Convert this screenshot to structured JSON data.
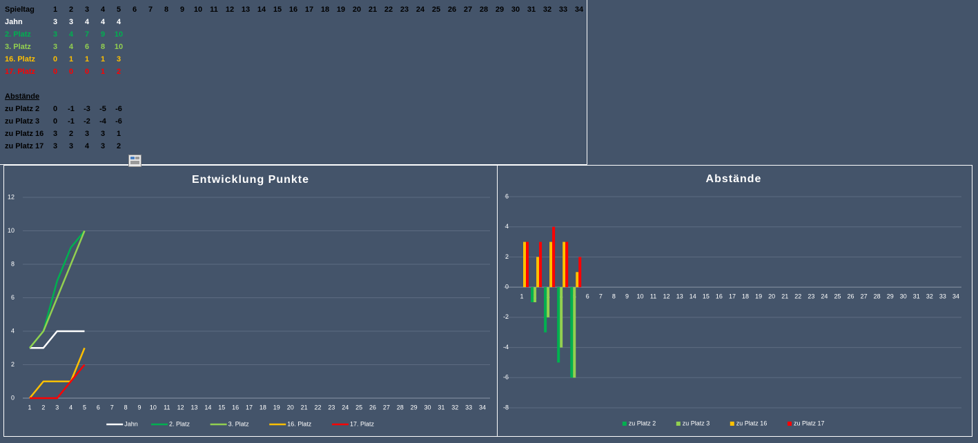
{
  "table": {
    "header": {
      "label": "Spieltag",
      "values": [
        1,
        2,
        3,
        4,
        5,
        6,
        7,
        8,
        9,
        10,
        11,
        12,
        13,
        14,
        15,
        16,
        17,
        18,
        19,
        20,
        21,
        22,
        23,
        24,
        25,
        26,
        27,
        28,
        29,
        30,
        31,
        32,
        33,
        34
      ],
      "color": "#000000"
    },
    "rows": [
      {
        "label": "Jahn",
        "values": [
          3,
          3,
          4,
          4,
          4
        ],
        "color": "#ffffff"
      },
      {
        "label": "2. Platz",
        "values": [
          3,
          4,
          7,
          9,
          10
        ],
        "color": "#00b050"
      },
      {
        "label": "3. Platz",
        "values": [
          3,
          4,
          6,
          8,
          10
        ],
        "color": "#92d050"
      },
      {
        "label": "16. Platz",
        "values": [
          0,
          1,
          1,
          1,
          3
        ],
        "color": "#ffc000"
      },
      {
        "label": "17. Platz",
        "values": [
          0,
          0,
          0,
          1,
          2
        ],
        "color": "#ff0000"
      }
    ],
    "section_title": "Abstände",
    "diff_rows": [
      {
        "label": "zu Platz 2",
        "values": [
          0,
          -1,
          -3,
          -5,
          -6
        ],
        "color": "#000000"
      },
      {
        "label": "zu Platz 3",
        "values": [
          0,
          -1,
          -2,
          -4,
          -6
        ],
        "color": "#000000"
      },
      {
        "label": "zu Platz 16",
        "values": [
          3,
          2,
          3,
          3,
          1
        ],
        "color": "#000000"
      },
      {
        "label": "zu Platz 17",
        "values": [
          3,
          3,
          4,
          3,
          2
        ],
        "color": "#000000"
      }
    ]
  },
  "chart_data": [
    {
      "type": "line",
      "title": "Entwicklung Punkte",
      "categories": [
        1,
        2,
        3,
        4,
        5,
        6,
        7,
        8,
        9,
        10,
        11,
        12,
        13,
        14,
        15,
        16,
        17,
        18,
        19,
        20,
        21,
        22,
        23,
        24,
        25,
        26,
        27,
        28,
        29,
        30,
        31,
        32,
        33,
        34
      ],
      "series": [
        {
          "name": "Jahn",
          "color": "#ffffff",
          "values": [
            3,
            3,
            4,
            4,
            4,
            null,
            null,
            null,
            null,
            null,
            null,
            null,
            null,
            null,
            null,
            null,
            null,
            null,
            null,
            null,
            null,
            null,
            null,
            null,
            null,
            null,
            null,
            null,
            null,
            null,
            null,
            null,
            null,
            null
          ]
        },
        {
          "name": "2. Platz",
          "color": "#00b050",
          "values": [
            3,
            4,
            7,
            9,
            10,
            null,
            null,
            null,
            null,
            null,
            null,
            null,
            null,
            null,
            null,
            null,
            null,
            null,
            null,
            null,
            null,
            null,
            null,
            null,
            null,
            null,
            null,
            null,
            null,
            null,
            null,
            null,
            null,
            null
          ]
        },
        {
          "name": "3. Platz",
          "color": "#92d050",
          "values": [
            3,
            4,
            6,
            8,
            10,
            null,
            null,
            null,
            null,
            null,
            null,
            null,
            null,
            null,
            null,
            null,
            null,
            null,
            null,
            null,
            null,
            null,
            null,
            null,
            null,
            null,
            null,
            null,
            null,
            null,
            null,
            null,
            null,
            null
          ]
        },
        {
          "name": "16. Platz",
          "color": "#ffc000",
          "values": [
            0,
            1,
            1,
            1,
            3,
            null,
            null,
            null,
            null,
            null,
            null,
            null,
            null,
            null,
            null,
            null,
            null,
            null,
            null,
            null,
            null,
            null,
            null,
            null,
            null,
            null,
            null,
            null,
            null,
            null,
            null,
            null,
            null,
            null
          ]
        },
        {
          "name": "17. Platz",
          "color": "#ff0000",
          "values": [
            0,
            0,
            0,
            1,
            2,
            null,
            null,
            null,
            null,
            null,
            null,
            null,
            null,
            null,
            null,
            null,
            null,
            null,
            null,
            null,
            null,
            null,
            null,
            null,
            null,
            null,
            null,
            null,
            null,
            null,
            null,
            null,
            null,
            null
          ]
        }
      ],
      "ylim": [
        0,
        12
      ],
      "yticks": [
        0,
        2,
        4,
        6,
        8,
        10,
        12
      ],
      "grid": true,
      "legend": "bottom"
    },
    {
      "type": "bar",
      "title": "Abstände",
      "categories": [
        1,
        2,
        3,
        4,
        5,
        6,
        7,
        8,
        9,
        10,
        11,
        12,
        13,
        14,
        15,
        16,
        17,
        18,
        19,
        20,
        21,
        22,
        23,
        24,
        25,
        26,
        27,
        28,
        29,
        30,
        31,
        32,
        33,
        34
      ],
      "series": [
        {
          "name": "zu Platz 2",
          "color": "#00b050",
          "values": [
            0,
            -1,
            -3,
            -5,
            -6,
            null,
            null,
            null,
            null,
            null,
            null,
            null,
            null,
            null,
            null,
            null,
            null,
            null,
            null,
            null,
            null,
            null,
            null,
            null,
            null,
            null,
            null,
            null,
            null,
            null,
            null,
            null,
            null,
            null
          ]
        },
        {
          "name": "zu Platz 3",
          "color": "#92d050",
          "values": [
            0,
            -1,
            -2,
            -4,
            -6,
            null,
            null,
            null,
            null,
            null,
            null,
            null,
            null,
            null,
            null,
            null,
            null,
            null,
            null,
            null,
            null,
            null,
            null,
            null,
            null,
            null,
            null,
            null,
            null,
            null,
            null,
            null,
            null,
            null
          ]
        },
        {
          "name": "zu Platz 16",
          "color": "#ffc000",
          "values": [
            3,
            2,
            3,
            3,
            1,
            null,
            null,
            null,
            null,
            null,
            null,
            null,
            null,
            null,
            null,
            null,
            null,
            null,
            null,
            null,
            null,
            null,
            null,
            null,
            null,
            null,
            null,
            null,
            null,
            null,
            null,
            null,
            null,
            null
          ]
        },
        {
          "name": "zu Platz 17",
          "color": "#ff0000",
          "values": [
            3,
            3,
            4,
            3,
            2,
            null,
            null,
            null,
            null,
            null,
            null,
            null,
            null,
            null,
            null,
            null,
            null,
            null,
            null,
            null,
            null,
            null,
            null,
            null,
            null,
            null,
            null,
            null,
            null,
            null,
            null,
            null,
            null,
            null
          ]
        }
      ],
      "ylim": [
        -8,
        6
      ],
      "yticks": [
        -8,
        -6,
        -4,
        -2,
        0,
        2,
        4,
        6
      ],
      "grid": true,
      "legend": "bottom"
    }
  ]
}
